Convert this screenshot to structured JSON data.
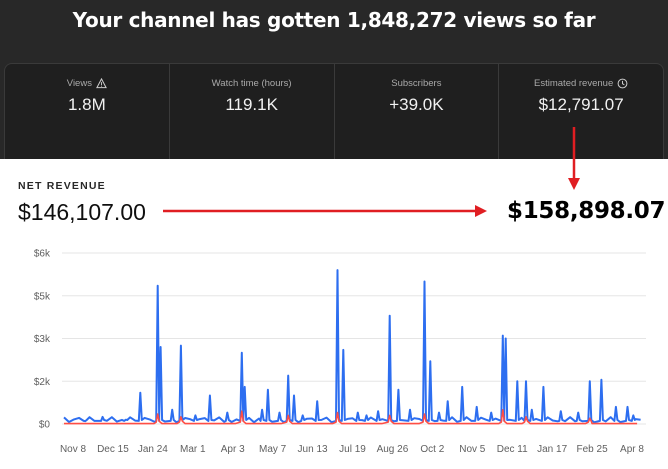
{
  "headline": "Your channel has gotten 1,848,272 views so far",
  "stats": [
    {
      "label": "Views",
      "value": "1.8M",
      "icon": "warning-icon"
    },
    {
      "label": "Watch time (hours)",
      "value": "119.1K",
      "icon": ""
    },
    {
      "label": "Subscribers",
      "value": "+39.0K",
      "icon": ""
    },
    {
      "label": "Estimated revenue",
      "value": "$12,791.07",
      "icon": "clock-icon"
    }
  ],
  "net_revenue": {
    "label": "NET REVENUE",
    "value": "$146,107.00",
    "new_value": "$158,898.07"
  },
  "colors": {
    "dark_bg": "#282828",
    "card_bg": "#1f1f1f",
    "line_blue": "#2d6ef0",
    "line_red": "#ff4e45",
    "annotation_red": "#e01e22"
  },
  "chart_data": {
    "type": "line",
    "xlabel": "",
    "ylabel": "",
    "y_tick_labels": [
      "$0",
      "$2k",
      "$3k",
      "$5k",
      "$6k"
    ],
    "x_tick_labels": [
      "Nov 8",
      "Dec 15",
      "Jan 24",
      "Mar 1",
      "Apr 3",
      "May 7",
      "Jun 13",
      "Jul 19",
      "Aug 26",
      "Oct 2",
      "Nov 5",
      "Dec 11",
      "Jan 17",
      "Feb 25",
      "Apr 8"
    ],
    "ylim": [
      0,
      6000
    ],
    "series": [
      {
        "color": "#2d6ef0",
        "peaks": [
          {
            "x": 0.04,
            "y": 100
          },
          {
            "x": 0.07,
            "y": 250
          },
          {
            "x": 0.11,
            "y": 150
          },
          {
            "x": 0.135,
            "y": 1100
          },
          {
            "x": 0.165,
            "y": 4850
          },
          {
            "x": 0.17,
            "y": 2700
          },
          {
            "x": 0.19,
            "y": 500
          },
          {
            "x": 0.205,
            "y": 2750
          },
          {
            "x": 0.23,
            "y": 300
          },
          {
            "x": 0.255,
            "y": 1000
          },
          {
            "x": 0.285,
            "y": 400
          },
          {
            "x": 0.31,
            "y": 2500
          },
          {
            "x": 0.315,
            "y": 1300
          },
          {
            "x": 0.345,
            "y": 500
          },
          {
            "x": 0.355,
            "y": 1200
          },
          {
            "x": 0.375,
            "y": 400
          },
          {
            "x": 0.39,
            "y": 1700
          },
          {
            "x": 0.4,
            "y": 1000
          },
          {
            "x": 0.415,
            "y": 300
          },
          {
            "x": 0.44,
            "y": 800
          },
          {
            "x": 0.475,
            "y": 5400
          },
          {
            "x": 0.485,
            "y": 2600
          },
          {
            "x": 0.51,
            "y": 400
          },
          {
            "x": 0.525,
            "y": 300
          },
          {
            "x": 0.545,
            "y": 450
          },
          {
            "x": 0.565,
            "y": 3800
          },
          {
            "x": 0.58,
            "y": 1200
          },
          {
            "x": 0.6,
            "y": 500
          },
          {
            "x": 0.625,
            "y": 5000
          },
          {
            "x": 0.635,
            "y": 2200
          },
          {
            "x": 0.65,
            "y": 400
          },
          {
            "x": 0.665,
            "y": 800
          },
          {
            "x": 0.69,
            "y": 1300
          },
          {
            "x": 0.715,
            "y": 600
          },
          {
            "x": 0.74,
            "y": 400
          },
          {
            "x": 0.76,
            "y": 3100
          },
          {
            "x": 0.765,
            "y": 3000
          },
          {
            "x": 0.785,
            "y": 1500
          },
          {
            "x": 0.8,
            "y": 1500
          },
          {
            "x": 0.81,
            "y": 500
          },
          {
            "x": 0.83,
            "y": 1300
          },
          {
            "x": 0.86,
            "y": 450
          },
          {
            "x": 0.89,
            "y": 400
          },
          {
            "x": 0.91,
            "y": 1500
          },
          {
            "x": 0.93,
            "y": 1550
          },
          {
            "x": 0.955,
            "y": 600
          },
          {
            "x": 0.975,
            "y": 600
          },
          {
            "x": 0.985,
            "y": 300
          }
        ]
      },
      {
        "color": "#ff4e45",
        "peaks": [
          {
            "x": 0.165,
            "y": 350
          },
          {
            "x": 0.205,
            "y": 250
          },
          {
            "x": 0.31,
            "y": 450
          },
          {
            "x": 0.39,
            "y": 300
          },
          {
            "x": 0.475,
            "y": 400
          },
          {
            "x": 0.565,
            "y": 300
          },
          {
            "x": 0.625,
            "y": 350
          },
          {
            "x": 0.76,
            "y": 500
          },
          {
            "x": 0.8,
            "y": 250
          },
          {
            "x": 0.91,
            "y": 200
          }
        ]
      }
    ]
  }
}
